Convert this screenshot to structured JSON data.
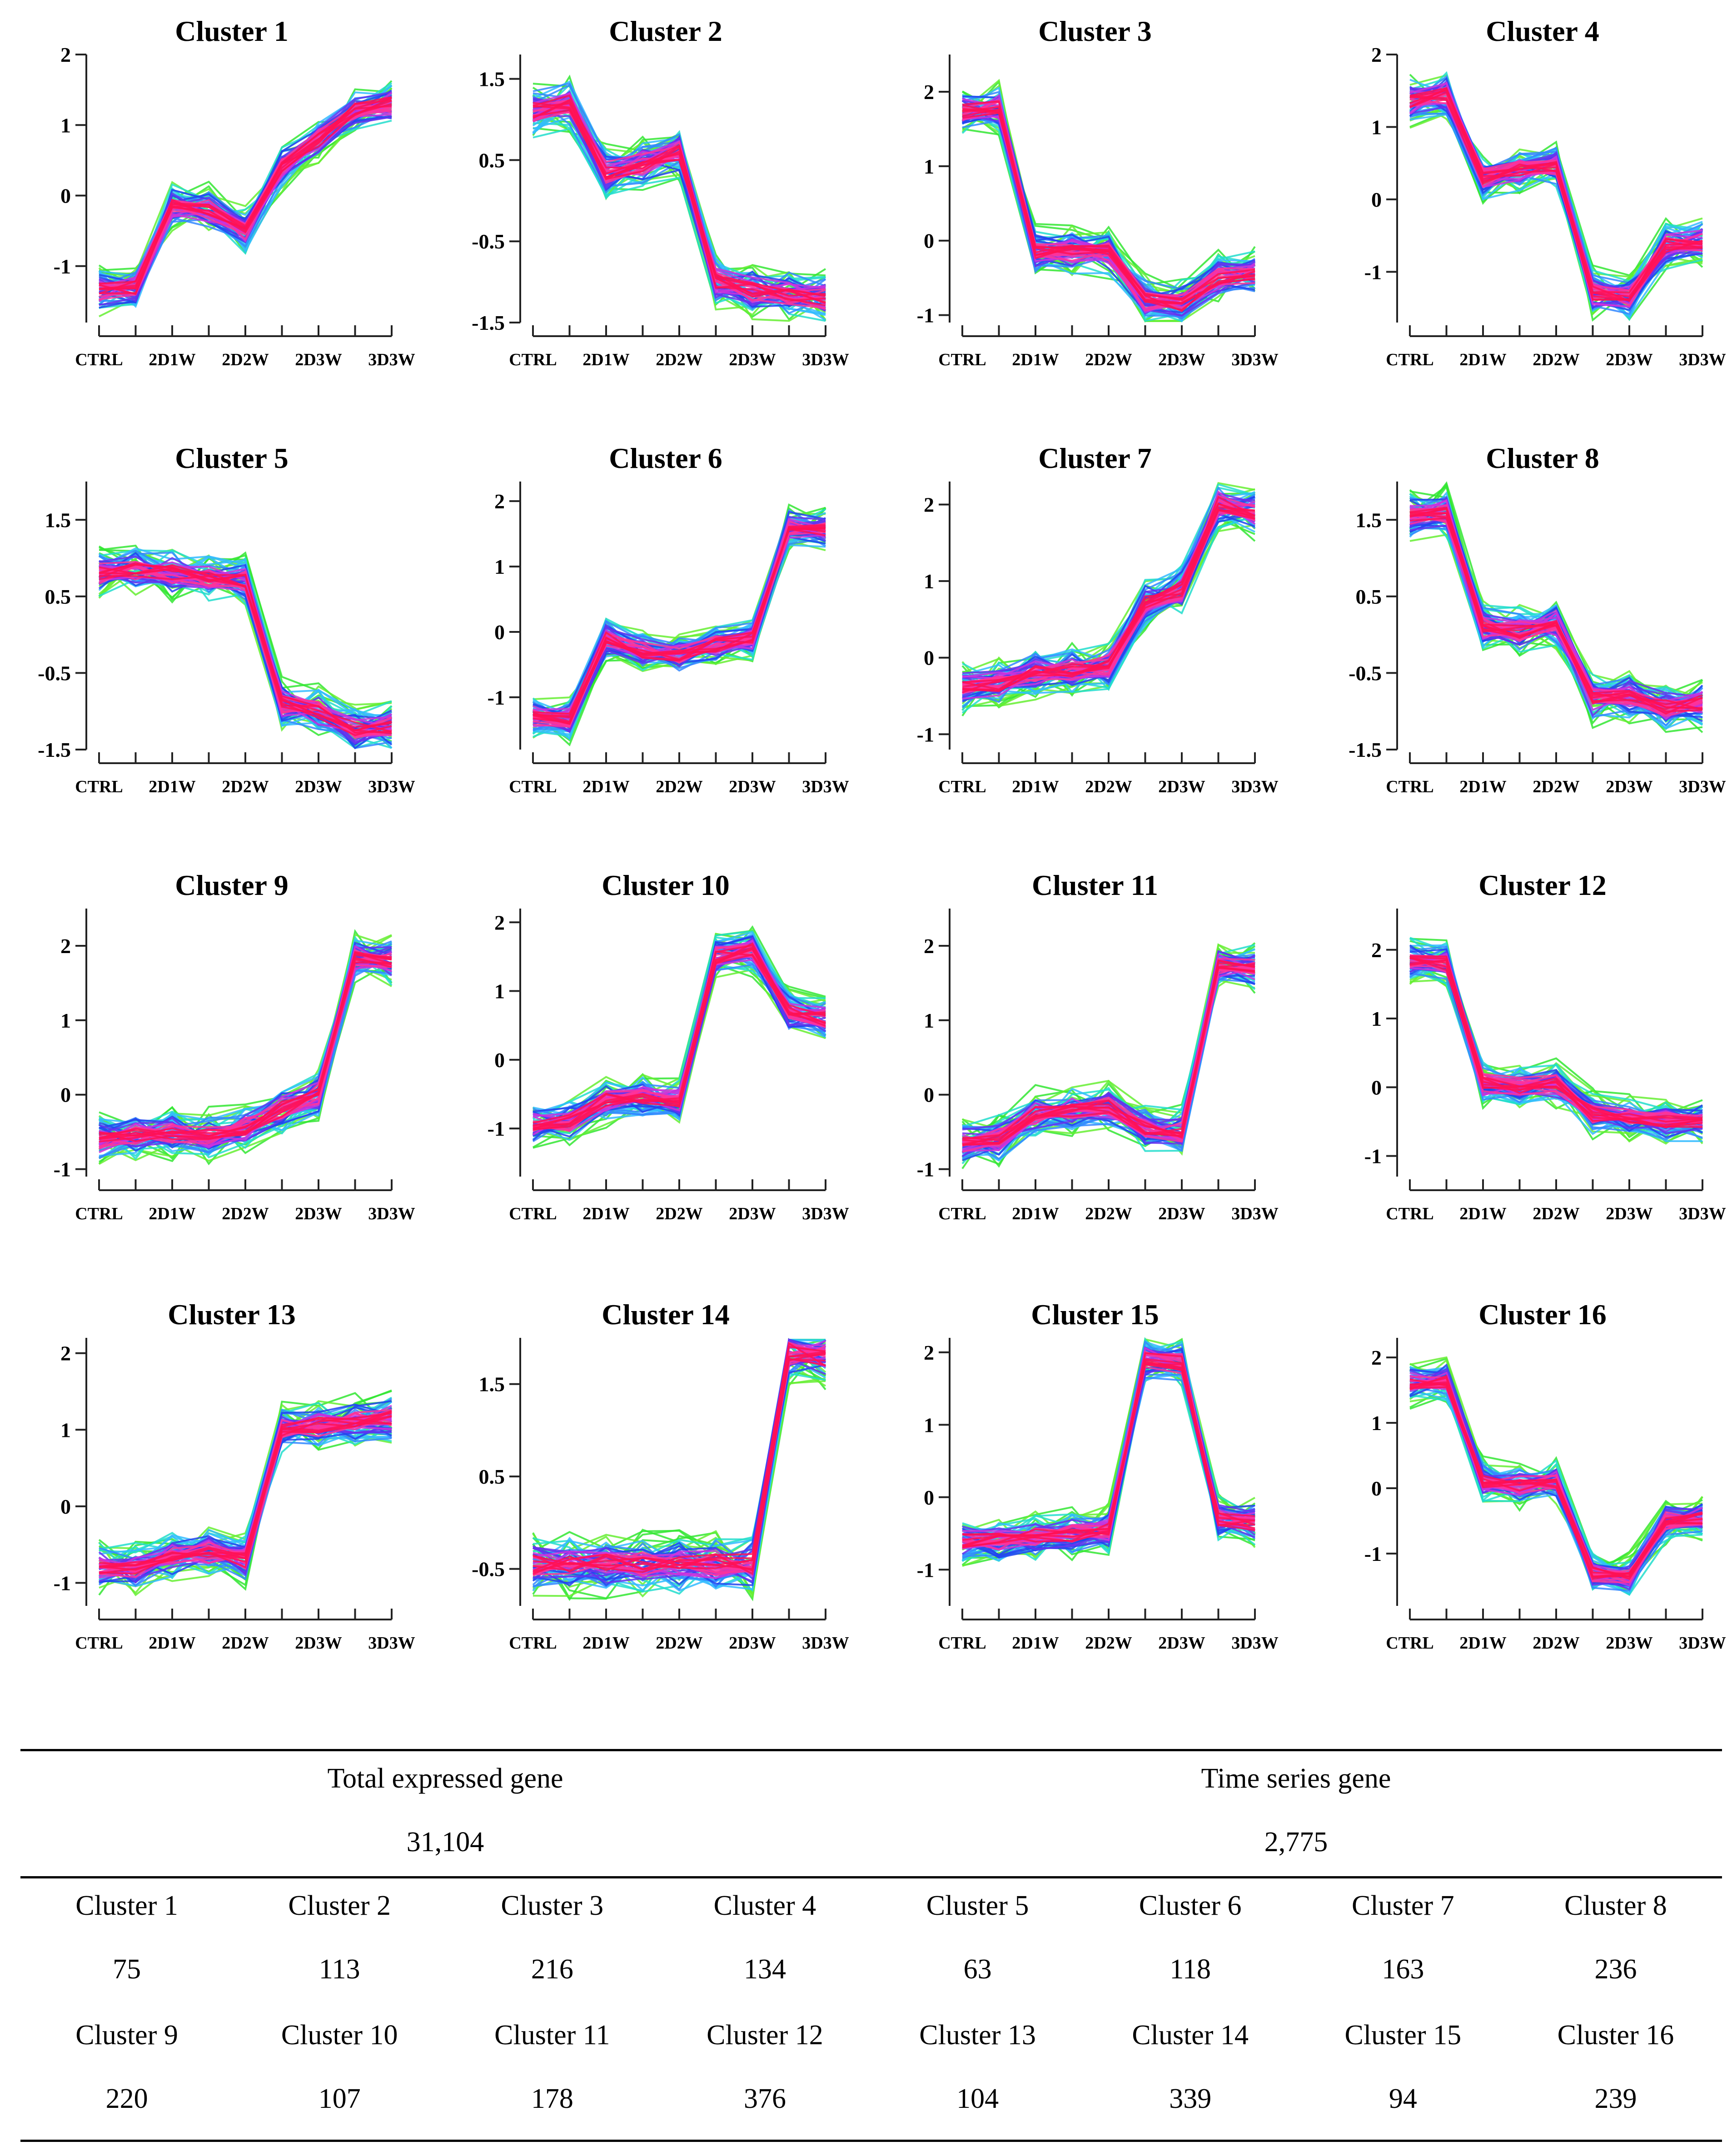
{
  "chart_data": [
    {
      "type": "line",
      "title": "Cluster 1",
      "categories": [
        "CTRL",
        "2D1W",
        "2D2W",
        "2D3W",
        "3D3W"
      ],
      "ylim": [
        -1.8,
        2
      ],
      "yticks": [
        -1,
        0,
        1,
        2
      ],
      "ytick_labels": [
        "-1",
        "0",
        "1",
        "2"
      ],
      "x": [
        0,
        1,
        2,
        3,
        4,
        5,
        6,
        7,
        8
      ],
      "median": [
        -1.35,
        -1.3,
        -0.15,
        -0.2,
        -0.5,
        0.4,
        0.8,
        1.2,
        1.3
      ]
    },
    {
      "type": "line",
      "title": "Cluster 2",
      "categories": [
        "CTRL",
        "2D1W",
        "2D2W",
        "2D3W",
        "3D3W"
      ],
      "ylim": [
        -1.5,
        1.8
      ],
      "yticks": [
        -1.5,
        -0.5,
        0.5,
        1.5
      ],
      "ytick_labels": [
        "-1.5",
        "-0.5",
        "0.5",
        "1.5"
      ],
      "x": [
        0,
        1,
        2,
        3,
        4,
        5,
        6,
        7,
        8
      ],
      "median": [
        1.1,
        1.2,
        0.35,
        0.45,
        0.6,
        -1.0,
        -1.1,
        -1.15,
        -1.2
      ]
    },
    {
      "type": "line",
      "title": "Cluster 3",
      "categories": [
        "CTRL",
        "2D1W",
        "2D2W",
        "2D3W",
        "3D3W"
      ],
      "ylim": [
        -1.1,
        2.5
      ],
      "yticks": [
        -1,
        0,
        1,
        2
      ],
      "ytick_labels": [
        "-1",
        "0",
        "1",
        "2"
      ],
      "x": [
        0,
        1,
        2,
        3,
        4,
        5,
        6,
        7,
        8
      ],
      "median": [
        1.75,
        1.8,
        -0.15,
        -0.15,
        -0.15,
        -0.8,
        -0.85,
        -0.5,
        -0.45
      ]
    },
    {
      "type": "line",
      "title": "Cluster 4",
      "categories": [
        "CTRL",
        "2D1W",
        "2D2W",
        "2D3W",
        "3D3W"
      ],
      "ylim": [
        -1.7,
        2
      ],
      "yticks": [
        -1,
        0,
        1,
        2
      ],
      "ytick_labels": [
        "-1",
        "0",
        "1",
        "2"
      ],
      "x": [
        0,
        1,
        2,
        3,
        4,
        5,
        6,
        7,
        8
      ],
      "median": [
        1.35,
        1.45,
        0.3,
        0.4,
        0.45,
        -1.3,
        -1.35,
        -0.65,
        -0.6
      ]
    },
    {
      "type": "line",
      "title": "Cluster 5",
      "categories": [
        "CTRL",
        "2D1W",
        "2D2W",
        "2D3W",
        "3D3W"
      ],
      "ylim": [
        -1.5,
        2.0
      ],
      "yticks": [
        -1.5,
        -0.5,
        0.5,
        1.5
      ],
      "ytick_labels": [
        "-1.5",
        "-0.5",
        "0.5",
        "1.5"
      ],
      "x": [
        0,
        1,
        2,
        3,
        4,
        5,
        6,
        7,
        8
      ],
      "median": [
        0.8,
        0.85,
        0.8,
        0.75,
        0.7,
        -0.9,
        -1.0,
        -1.25,
        -1.2
      ]
    },
    {
      "type": "line",
      "title": "Cluster 6",
      "categories": [
        "CTRL",
        "2D1W",
        "2D2W",
        "2D3W",
        "3D3W"
      ],
      "ylim": [
        -1.8,
        2.3
      ],
      "yticks": [
        -1,
        0,
        1,
        2
      ],
      "ytick_labels": [
        "-1",
        "0",
        "1",
        "2"
      ],
      "x": [
        0,
        1,
        2,
        3,
        4,
        5,
        6,
        7,
        8
      ],
      "median": [
        -1.3,
        -1.35,
        -0.1,
        -0.3,
        -0.35,
        -0.2,
        -0.1,
        1.6,
        1.55
      ]
    },
    {
      "type": "line",
      "title": "Cluster 7",
      "categories": [
        "CTRL",
        "2D1W",
        "2D2W",
        "2D3W",
        "3D3W"
      ],
      "ylim": [
        -1.2,
        2.3
      ],
      "yticks": [
        -1,
        0,
        1,
        2
      ],
      "ytick_labels": [
        "-1",
        "0",
        "1",
        "2"
      ],
      "x": [
        0,
        1,
        2,
        3,
        4,
        5,
        6,
        7,
        8
      ],
      "median": [
        -0.4,
        -0.35,
        -0.2,
        -0.15,
        -0.1,
        0.7,
        0.9,
        2.0,
        1.9
      ]
    },
    {
      "type": "line",
      "title": "Cluster 8",
      "categories": [
        "CTRL",
        "2D1W",
        "2D2W",
        "2D3W",
        "3D3W"
      ],
      "ylim": [
        -1.5,
        2.0
      ],
      "yticks": [
        -1.5,
        -0.5,
        0.5,
        1.5
      ],
      "ytick_labels": [
        "-1.5",
        "-0.5",
        "0.5",
        "1.5"
      ],
      "x": [
        0,
        1,
        2,
        3,
        4,
        5,
        6,
        7,
        8
      ],
      "median": [
        1.55,
        1.6,
        0.1,
        0.05,
        0.15,
        -0.85,
        -0.8,
        -0.95,
        -0.9
      ]
    },
    {
      "type": "line",
      "title": "Cluster 9",
      "categories": [
        "CTRL",
        "2D1W",
        "2D2W",
        "2D3W",
        "3D3W"
      ],
      "ylim": [
        -1.1,
        2.5
      ],
      "yticks": [
        -1,
        0,
        1,
        2
      ],
      "ytick_labels": [
        "-1",
        "0",
        "1",
        "2"
      ],
      "x": [
        0,
        1,
        2,
        3,
        4,
        5,
        6,
        7,
        8
      ],
      "median": [
        -0.6,
        -0.55,
        -0.5,
        -0.55,
        -0.45,
        -0.2,
        0.0,
        1.85,
        1.8
      ]
    },
    {
      "type": "line",
      "title": "Cluster 10",
      "categories": [
        "CTRL",
        "2D1W",
        "2D2W",
        "2D3W",
        "3D3W"
      ],
      "ylim": [
        -1.7,
        2.2
      ],
      "yticks": [
        -1,
        0,
        1,
        2
      ],
      "ytick_labels": [
        "-1",
        "0",
        "1",
        "2"
      ],
      "x": [
        0,
        1,
        2,
        3,
        4,
        5,
        6,
        7,
        8
      ],
      "median": [
        -0.95,
        -0.9,
        -0.6,
        -0.55,
        -0.6,
        1.5,
        1.6,
        0.7,
        0.6
      ]
    },
    {
      "type": "line",
      "title": "Cluster 11",
      "categories": [
        "CTRL",
        "2D1W",
        "2D2W",
        "2D3W",
        "3D3W"
      ],
      "ylim": [
        -1.1,
        2.5
      ],
      "yticks": [
        -1,
        0,
        1,
        2
      ],
      "ytick_labels": [
        "-1",
        "0",
        "1",
        "2"
      ],
      "x": [
        0,
        1,
        2,
        3,
        4,
        5,
        6,
        7,
        8
      ],
      "median": [
        -0.65,
        -0.6,
        -0.25,
        -0.2,
        -0.15,
        -0.45,
        -0.5,
        1.75,
        1.7
      ]
    },
    {
      "type": "line",
      "title": "Cluster 12",
      "categories": [
        "CTRL",
        "2D1W",
        "2D2W",
        "2D3W",
        "3D3W"
      ],
      "ylim": [
        -1.3,
        2.6
      ],
      "yticks": [
        -1,
        0,
        1,
        2
      ],
      "ytick_labels": [
        "-1",
        "0",
        "1",
        "2"
      ],
      "x": [
        0,
        1,
        2,
        3,
        4,
        5,
        6,
        7,
        8
      ],
      "median": [
        1.85,
        1.8,
        0.05,
        0.0,
        0.05,
        -0.4,
        -0.45,
        -0.5,
        -0.5
      ]
    },
    {
      "type": "line",
      "title": "Cluster 13",
      "categories": [
        "CTRL",
        "2D1W",
        "2D2W",
        "2D3W",
        "3D3W"
      ],
      "ylim": [
        -1.3,
        2.2
      ],
      "yticks": [
        -1,
        0,
        1,
        2
      ],
      "ytick_labels": [
        "-1",
        "0",
        "1",
        "2"
      ],
      "x": [
        0,
        1,
        2,
        3,
        4,
        5,
        6,
        7,
        8
      ],
      "median": [
        -0.8,
        -0.8,
        -0.65,
        -0.6,
        -0.7,
        1.0,
        1.05,
        1.1,
        1.15
      ]
    },
    {
      "type": "line",
      "title": "Cluster 14",
      "categories": [
        "CTRL",
        "2D1W",
        "2D2W",
        "2D3W",
        "3D3W"
      ],
      "ylim": [
        -0.9,
        2.0
      ],
      "yticks": [
        -0.5,
        0.5,
        1.5
      ],
      "ytick_labels": [
        "-0.5",
        "0.5",
        "1.5"
      ],
      "x": [
        0,
        1,
        2,
        3,
        4,
        5,
        6,
        7,
        8
      ],
      "median": [
        -0.45,
        -0.45,
        -0.45,
        -0.45,
        -0.45,
        -0.45,
        -0.45,
        1.85,
        1.8
      ]
    },
    {
      "type": "line",
      "title": "Cluster 15",
      "categories": [
        "CTRL",
        "2D1W",
        "2D2W",
        "2D3W",
        "3D3W"
      ],
      "ylim": [
        -1.5,
        2.2
      ],
      "yticks": [
        -1,
        0,
        1,
        2
      ],
      "ytick_labels": [
        "-1",
        "0",
        "1",
        "2"
      ],
      "x": [
        0,
        1,
        2,
        3,
        4,
        5,
        6,
        7,
        8
      ],
      "median": [
        -0.6,
        -0.6,
        -0.55,
        -0.5,
        -0.45,
        1.9,
        1.85,
        -0.3,
        -0.35
      ]
    },
    {
      "type": "line",
      "title": "Cluster 16",
      "categories": [
        "CTRL",
        "2D1W",
        "2D2W",
        "2D3W",
        "3D3W"
      ],
      "ylim": [
        -1.8,
        2.3
      ],
      "yticks": [
        -1,
        0,
        1,
        2
      ],
      "ytick_labels": [
        "-1",
        "0",
        "1",
        "2"
      ],
      "x": [
        0,
        1,
        2,
        3,
        4,
        5,
        6,
        7,
        8
      ],
      "median": [
        1.6,
        1.65,
        0.1,
        0.05,
        0.1,
        -1.3,
        -1.35,
        -0.5,
        -0.45
      ]
    }
  ],
  "palette": [
    "#33e633",
    "#66ee33",
    "#22ddcc",
    "#33bbff",
    "#3388ff",
    "#2244ee",
    "#6633ee",
    "#cc33dd",
    "#ff3399",
    "#ff1155"
  ],
  "summary": {
    "total_label": "Total expressed gene",
    "total_value": "31,104",
    "time_series_label": "Time series gene",
    "time_series_value": "2,775",
    "rows": [
      {
        "names": [
          "Cluster 1",
          "Cluster 2",
          "Cluster 3",
          "Cluster 4",
          "Cluster 5",
          "Cluster 6",
          "Cluster 7",
          "Cluster 8"
        ],
        "counts": [
          "75",
          "113",
          "216",
          "134",
          "63",
          "118",
          "163",
          "236"
        ]
      },
      {
        "names": [
          "Cluster 9",
          "Cluster 10",
          "Cluster 11",
          "Cluster 12",
          "Cluster 13",
          "Cluster 14",
          "Cluster 15",
          "Cluster 16"
        ],
        "counts": [
          "220",
          "107",
          "178",
          "376",
          "104",
          "339",
          "94",
          "239"
        ]
      }
    ]
  }
}
